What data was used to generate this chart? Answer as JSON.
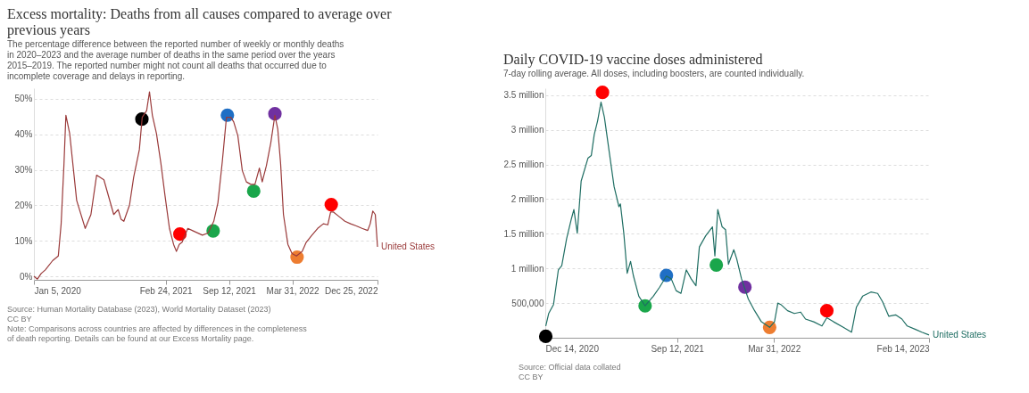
{
  "chart_data": [
    {
      "type": "line",
      "title": "Excess mortality: Deaths from all causes compared to average over previous years",
      "subtitle": "The percentage difference between the reported number of weekly or monthly deaths in 2020–2023 and the average number of deaths in the same period over the years 2015–2019. The reported number might not count all deaths that occurred due to incomplete coverage and delays in reporting.",
      "annotations": [
        "Source: Human Mortality Database (2023), World Mortality Dataset (2023)",
        "CC BY",
        "Note: Comparisons across countries are affected by differences in the completeness of death reporting. Details can be found at our Excess Mortality page."
      ],
      "xlim": [
        "2020-01-05",
        "2022-12-25"
      ],
      "xticks": [
        {
          "value": "2020-01-05",
          "label": "Jan 5, 2020"
        },
        {
          "value": "2021-02-24",
          "label": "Feb 24, 2021"
        },
        {
          "value": "2021-09-12",
          "label": "Sep 12, 2021"
        },
        {
          "value": "2022-03-31",
          "label": "Mar 31, 2022"
        },
        {
          "value": "2022-12-25",
          "label": "Dec 25, 2022"
        }
      ],
      "ylim": [
        -1,
        53
      ],
      "yticks": [
        {
          "value": 0,
          "label": "0%"
        },
        {
          "value": 10,
          "label": "10%"
        },
        {
          "value": 20,
          "label": "20%"
        },
        {
          "value": 30,
          "label": "30%"
        },
        {
          "value": 40,
          "label": "40%"
        },
        {
          "value": 50,
          "label": "50%"
        }
      ],
      "grid": "y",
      "series": [
        {
          "name": "United States",
          "color": "#9a3a3a",
          "x": [
            "2020-01-05",
            "2020-01-16",
            "2020-01-28",
            "2020-02-10",
            "2020-03-04",
            "2020-03-22",
            "2020-03-31",
            "2020-04-09",
            "2020-04-15",
            "2020-04-27",
            "2020-05-19",
            "2020-06-15",
            "2020-07-03",
            "2020-07-21",
            "2020-08-13",
            "2020-09-13",
            "2020-09-27",
            "2020-10-06",
            "2020-10-15",
            "2020-11-02",
            "2020-11-15",
            "2020-12-03",
            "2020-12-12",
            "2020-12-26",
            "2021-01-04",
            "2021-01-13",
            "2021-01-26",
            "2021-02-09",
            "2021-02-22",
            "2021-03-08",
            "2021-03-21",
            "2021-03-30",
            "2021-04-08",
            "2021-04-17",
            "2021-05-05",
            "2021-05-19",
            "2021-06-20",
            "2021-07-08",
            "2021-07-26",
            "2021-08-08",
            "2021-08-22",
            "2021-09-04",
            "2021-09-18",
            "2021-09-27",
            "2021-10-10",
            "2021-10-24",
            "2021-11-06",
            "2021-11-20",
            "2021-12-03",
            "2021-12-17",
            "2021-12-26",
            "2022-01-08",
            "2022-01-22",
            "2022-02-04",
            "2022-02-13",
            "2022-02-22",
            "2022-03-03",
            "2022-03-17",
            "2022-03-30",
            "2022-04-13",
            "2022-05-01",
            "2022-05-14",
            "2022-06-01",
            "2022-06-19",
            "2022-07-07",
            "2022-07-21",
            "2022-07-30",
            "2022-08-08",
            "2022-08-26",
            "2022-09-13",
            "2022-10-01",
            "2022-10-19",
            "2022-11-06",
            "2022-11-24",
            "2022-12-02",
            "2022-12-10",
            "2022-12-18",
            "2022-12-25"
          ],
          "values": [
            0,
            -0.8,
            0.8,
            1.8,
            4.4,
            5.7,
            14.8,
            31.8,
            45.4,
            40.2,
            21.4,
            13.5,
            17.4,
            28.5,
            27.2,
            17.4,
            18.8,
            16.1,
            15.5,
            20.1,
            27.9,
            35.7,
            44.8,
            46.7,
            52,
            45.4,
            40.2,
            31.8,
            22.7,
            13.5,
            9,
            7,
            9,
            9.6,
            13.5,
            12.9,
            11.6,
            12.2,
            15.5,
            20.7,
            32.4,
            44.8,
            44.8,
            43.5,
            39.6,
            29.8,
            26.6,
            25.9,
            25.9,
            30.5,
            26.6,
            31.1,
            37.6,
            45.4,
            41.5,
            31.8,
            17.4,
            9,
            6.4,
            5.7,
            7,
            9.6,
            11.6,
            13.5,
            14.8,
            14.5,
            18.1,
            18.1,
            16.8,
            15.5,
            14.8,
            14.2,
            13.5,
            12.9,
            14.8,
            18.4,
            17.4,
            8.3
          ]
        },
        {
          "type": "scatter",
          "marker": "circle",
          "colors": [
            "#000000",
            "#ff0000",
            "#1aa64b",
            "#1f6fc5",
            "#1aa64b",
            "#7030a0",
            "#ed7d31",
            "#ff0000"
          ],
          "x": [
            "2020-12-11",
            "2021-04-10",
            "2021-07-24",
            "2021-09-07",
            "2021-11-29",
            "2022-02-04",
            "2022-04-15",
            "2022-08-01"
          ],
          "values": [
            44.3,
            11.9,
            12.8,
            45.4,
            24,
            45.8,
            5.4,
            20.2
          ]
        }
      ]
    },
    {
      "type": "line",
      "title": "Daily COVID-19 vaccine doses administered",
      "subtitle": "7-day rolling average. All doses, including boosters, are counted individually.",
      "annotations": [
        "Source: Official data collated",
        "CC BY"
      ],
      "xlim": [
        "2020-12-14",
        "2023-02-14"
      ],
      "xticks": [
        {
          "value": "2020-12-14",
          "label": "Dec 14, 2020"
        },
        {
          "value": "2021-09-12",
          "label": "Sep 12, 2021"
        },
        {
          "value": "2022-03-31",
          "label": "Mar 31, 2022"
        },
        {
          "value": "2023-02-14",
          "label": "Feb 14, 2023"
        }
      ],
      "ylim": [
        0,
        3600000
      ],
      "yticks": [
        0,
        {
          "value": 500000,
          "label": "500,000"
        },
        {
          "value": 1000000,
          "label": "1 million"
        },
        {
          "value": 1500000,
          "label": "1.5 million"
        },
        {
          "value": 2000000,
          "label": "2 million"
        },
        {
          "value": 2500000,
          "label": "2.5 million"
        },
        {
          "value": 3000000,
          "label": "3 million"
        },
        {
          "value": 3500000,
          "label": "3.5 million"
        }
      ],
      "grid": "y",
      "series": [
        {
          "name": "United States",
          "color": "#1f6e63",
          "x": [
            "2020-12-15",
            "2020-12-21",
            "2020-12-31",
            "2021-01-10",
            "2021-01-17",
            "2021-01-27",
            "2021-02-06",
            "2021-02-11",
            "2021-02-18",
            "2021-02-26",
            "2021-03-12",
            "2021-03-19",
            "2021-03-25",
            "2021-04-01",
            "2021-04-08",
            "2021-04-15",
            "2021-04-25",
            "2021-05-05",
            "2021-05-15",
            "2021-05-18",
            "2021-05-25",
            "2021-06-01",
            "2021-06-08",
            "2021-06-14",
            "2021-06-25",
            "2021-07-08",
            "2021-07-25",
            "2021-08-07",
            "2021-08-21",
            "2021-08-31",
            "2021-09-10",
            "2021-09-20",
            "2021-10-01",
            "2021-10-11",
            "2021-10-21",
            "2021-10-28",
            "2021-11-10",
            "2021-11-24",
            "2021-11-29",
            "2021-12-05",
            "2021-12-14",
            "2021-12-21",
            "2021-12-27",
            "2022-01-07",
            "2022-01-13",
            "2022-01-23",
            "2022-02-06",
            "2022-02-19",
            "2022-03-05",
            "2022-03-22",
            "2022-04-01",
            "2022-04-08",
            "2022-04-14",
            "2022-04-28",
            "2022-05-12",
            "2022-05-25",
            "2022-06-04",
            "2022-06-21",
            "2022-07-08",
            "2022-07-18",
            "2022-08-01",
            "2022-08-21",
            "2022-09-07",
            "2022-09-17",
            "2022-09-30",
            "2022-10-17",
            "2022-10-31",
            "2022-11-10",
            "2022-11-23",
            "2022-12-07",
            "2022-12-20",
            "2022-12-31",
            "2023-01-17",
            "2023-01-30",
            "2023-02-14"
          ],
          "values": [
            170000,
            350000,
            480000,
            980000,
            1040000,
            1430000,
            1720000,
            1850000,
            1510000,
            2260000,
            2590000,
            2630000,
            2930000,
            3130000,
            3400000,
            3180000,
            2680000,
            2180000,
            1890000,
            1930000,
            1510000,
            930000,
            1100000,
            890000,
            600000,
            460000,
            600000,
            730000,
            890000,
            850000,
            680000,
            640000,
            980000,
            850000,
            750000,
            1310000,
            1470000,
            1600000,
            1180000,
            1850000,
            1600000,
            1560000,
            1060000,
            1270000,
            1140000,
            850000,
            560000,
            390000,
            230000,
            150000,
            230000,
            500000,
            480000,
            390000,
            350000,
            370000,
            270000,
            230000,
            170000,
            290000,
            230000,
            150000,
            80000,
            440000,
            600000,
            660000,
            640000,
            520000,
            310000,
            330000,
            270000,
            170000,
            120000,
            80000,
            40000
          ]
        },
        {
          "type": "scatter",
          "marker": "circle",
          "colors": [
            "#000000",
            "#ff0000",
            "#1aa64b",
            "#1f6fc5",
            "#1aa64b",
            "#7030a0",
            "#ed7d31",
            "#ff0000"
          ],
          "x": [
            "2020-12-15",
            "2021-04-11",
            "2021-07-08",
            "2021-08-21",
            "2021-12-02",
            "2022-01-30",
            "2022-03-22",
            "2022-07-18"
          ],
          "values": [
            20000,
            3540000,
            460000,
            900000,
            1050000,
            730000,
            150000,
            390000
          ]
        }
      ]
    }
  ]
}
